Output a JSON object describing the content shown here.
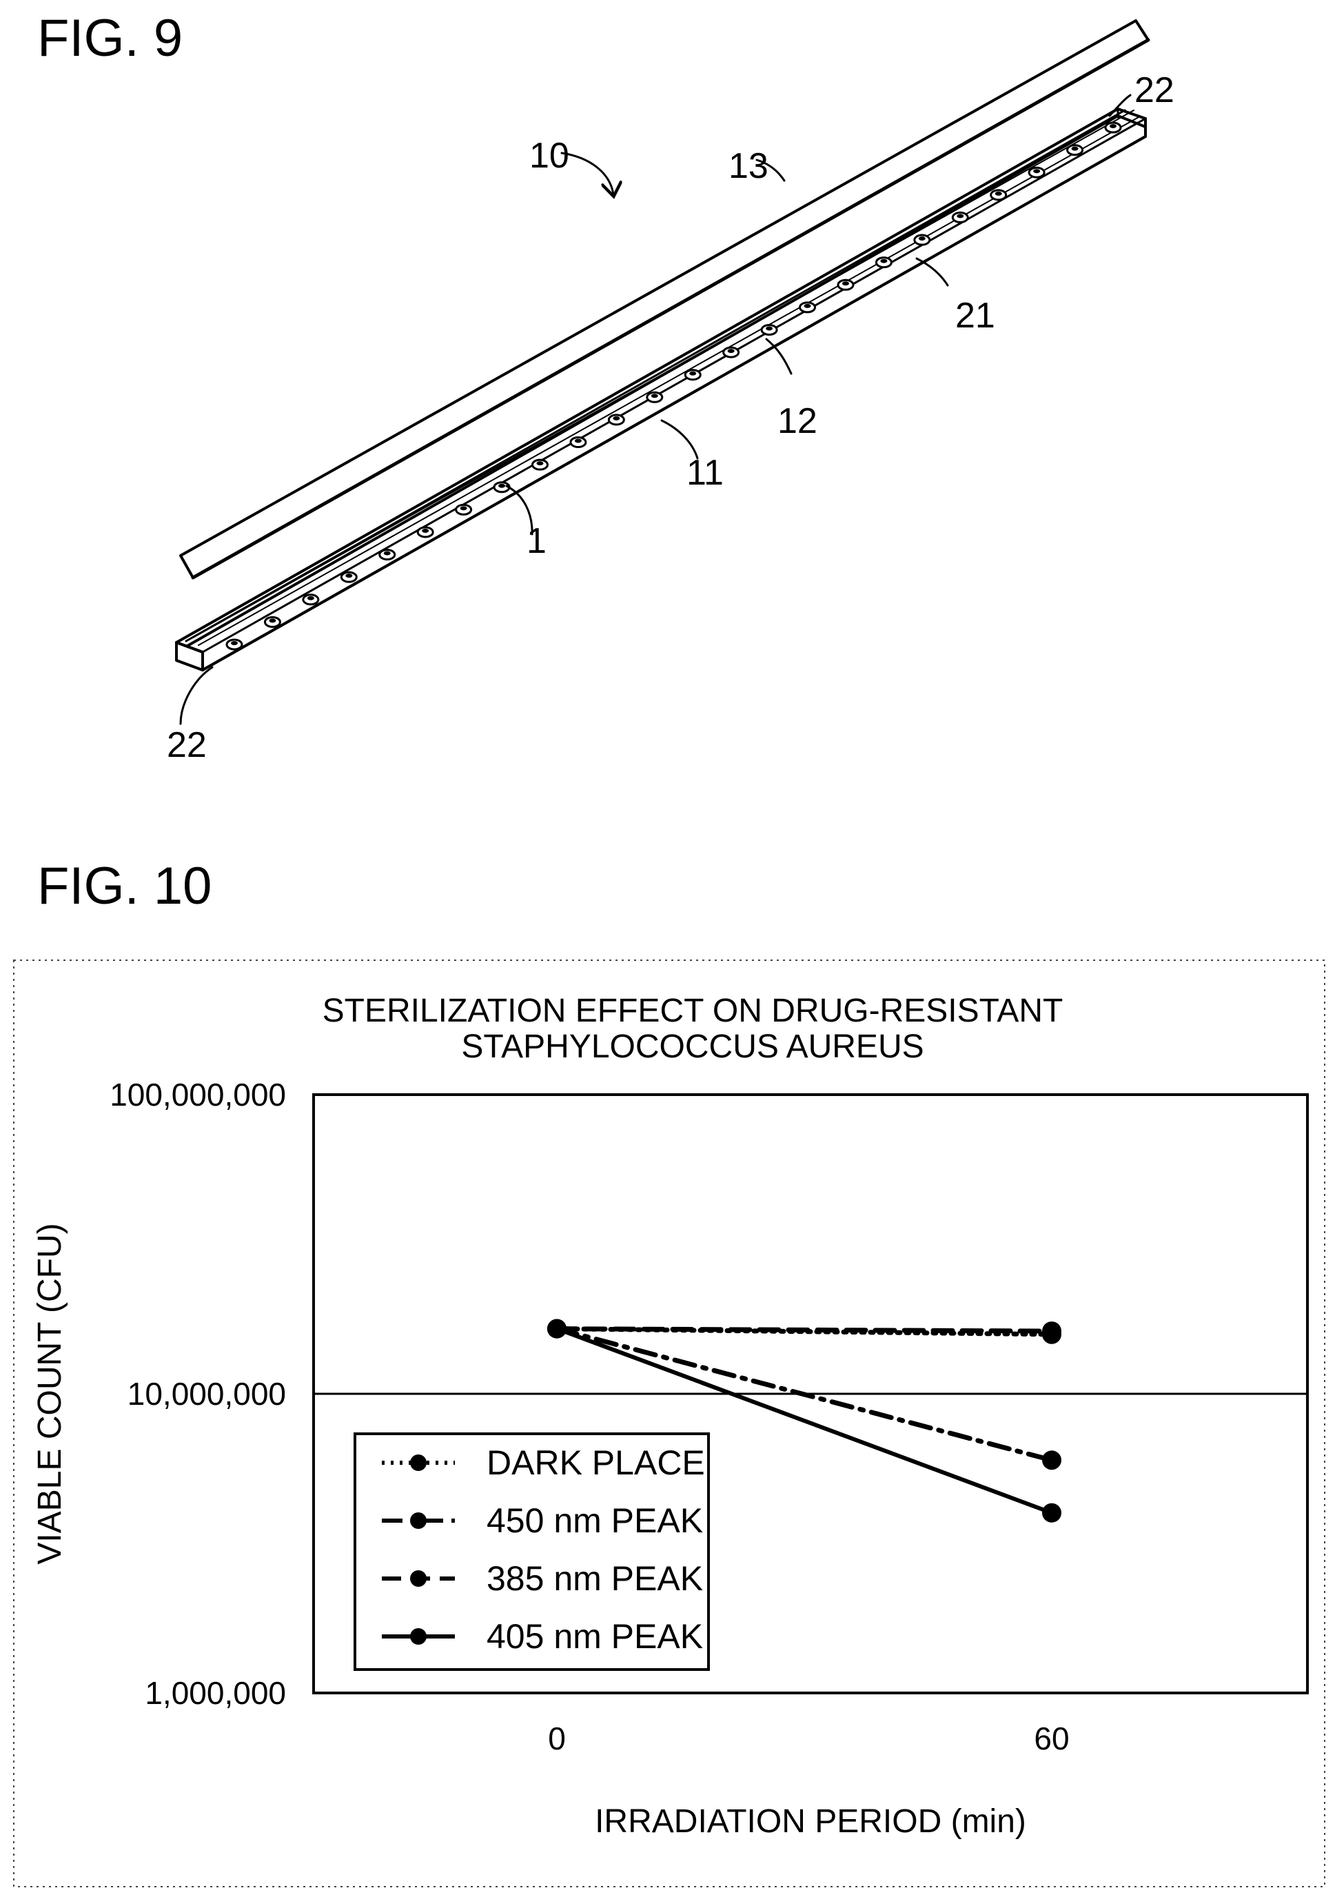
{
  "fig9": {
    "title": "FIG. 9",
    "labels": {
      "device": "10",
      "cover": "13",
      "cap_right": "22",
      "cap_left": "22",
      "side_wall": "21",
      "board": "12",
      "housing": "11",
      "led": "1"
    }
  },
  "fig10": {
    "title": "FIG. 10"
  },
  "chart_data": {
    "type": "line",
    "title": "STERILIZATION EFFECT ON DRUG-RESISTANT STAPHYLOCOCCUS AUREUS",
    "title_lines": [
      "STERILIZATION EFFECT ON DRUG-RESISTANT",
      "STAPHYLOCOCCUS AUREUS"
    ],
    "xlabel": "IRRADIATION PERIOD (min)",
    "ylabel": "VIABLE COUNT (CFU)",
    "y_scale": "log",
    "ylim": [
      1000000,
      100000000
    ],
    "y_ticks": [
      {
        "value": 1000000,
        "label": "1,000,000"
      },
      {
        "value": 10000000,
        "label": "10,000,000"
      },
      {
        "value": 100000000,
        "label": "100,000,000"
      }
    ],
    "categories": [
      "0",
      "60"
    ],
    "grid": "horizontal",
    "legend_position": "bottom-left",
    "series": [
      {
        "name": "DARK PLACE",
        "values": [
          16500000,
          15800000
        ],
        "line_style": "dotted"
      },
      {
        "name": "450 nm PEAK",
        "values": [
          16500000,
          6000000
        ],
        "line_style": "dash-dot"
      },
      {
        "name": "385 nm PEAK",
        "values": [
          16500000,
          16200000
        ],
        "line_style": "dashed"
      },
      {
        "name": "405 nm PEAK",
        "values": [
          16500000,
          4000000
        ],
        "line_style": "solid"
      }
    ]
  }
}
